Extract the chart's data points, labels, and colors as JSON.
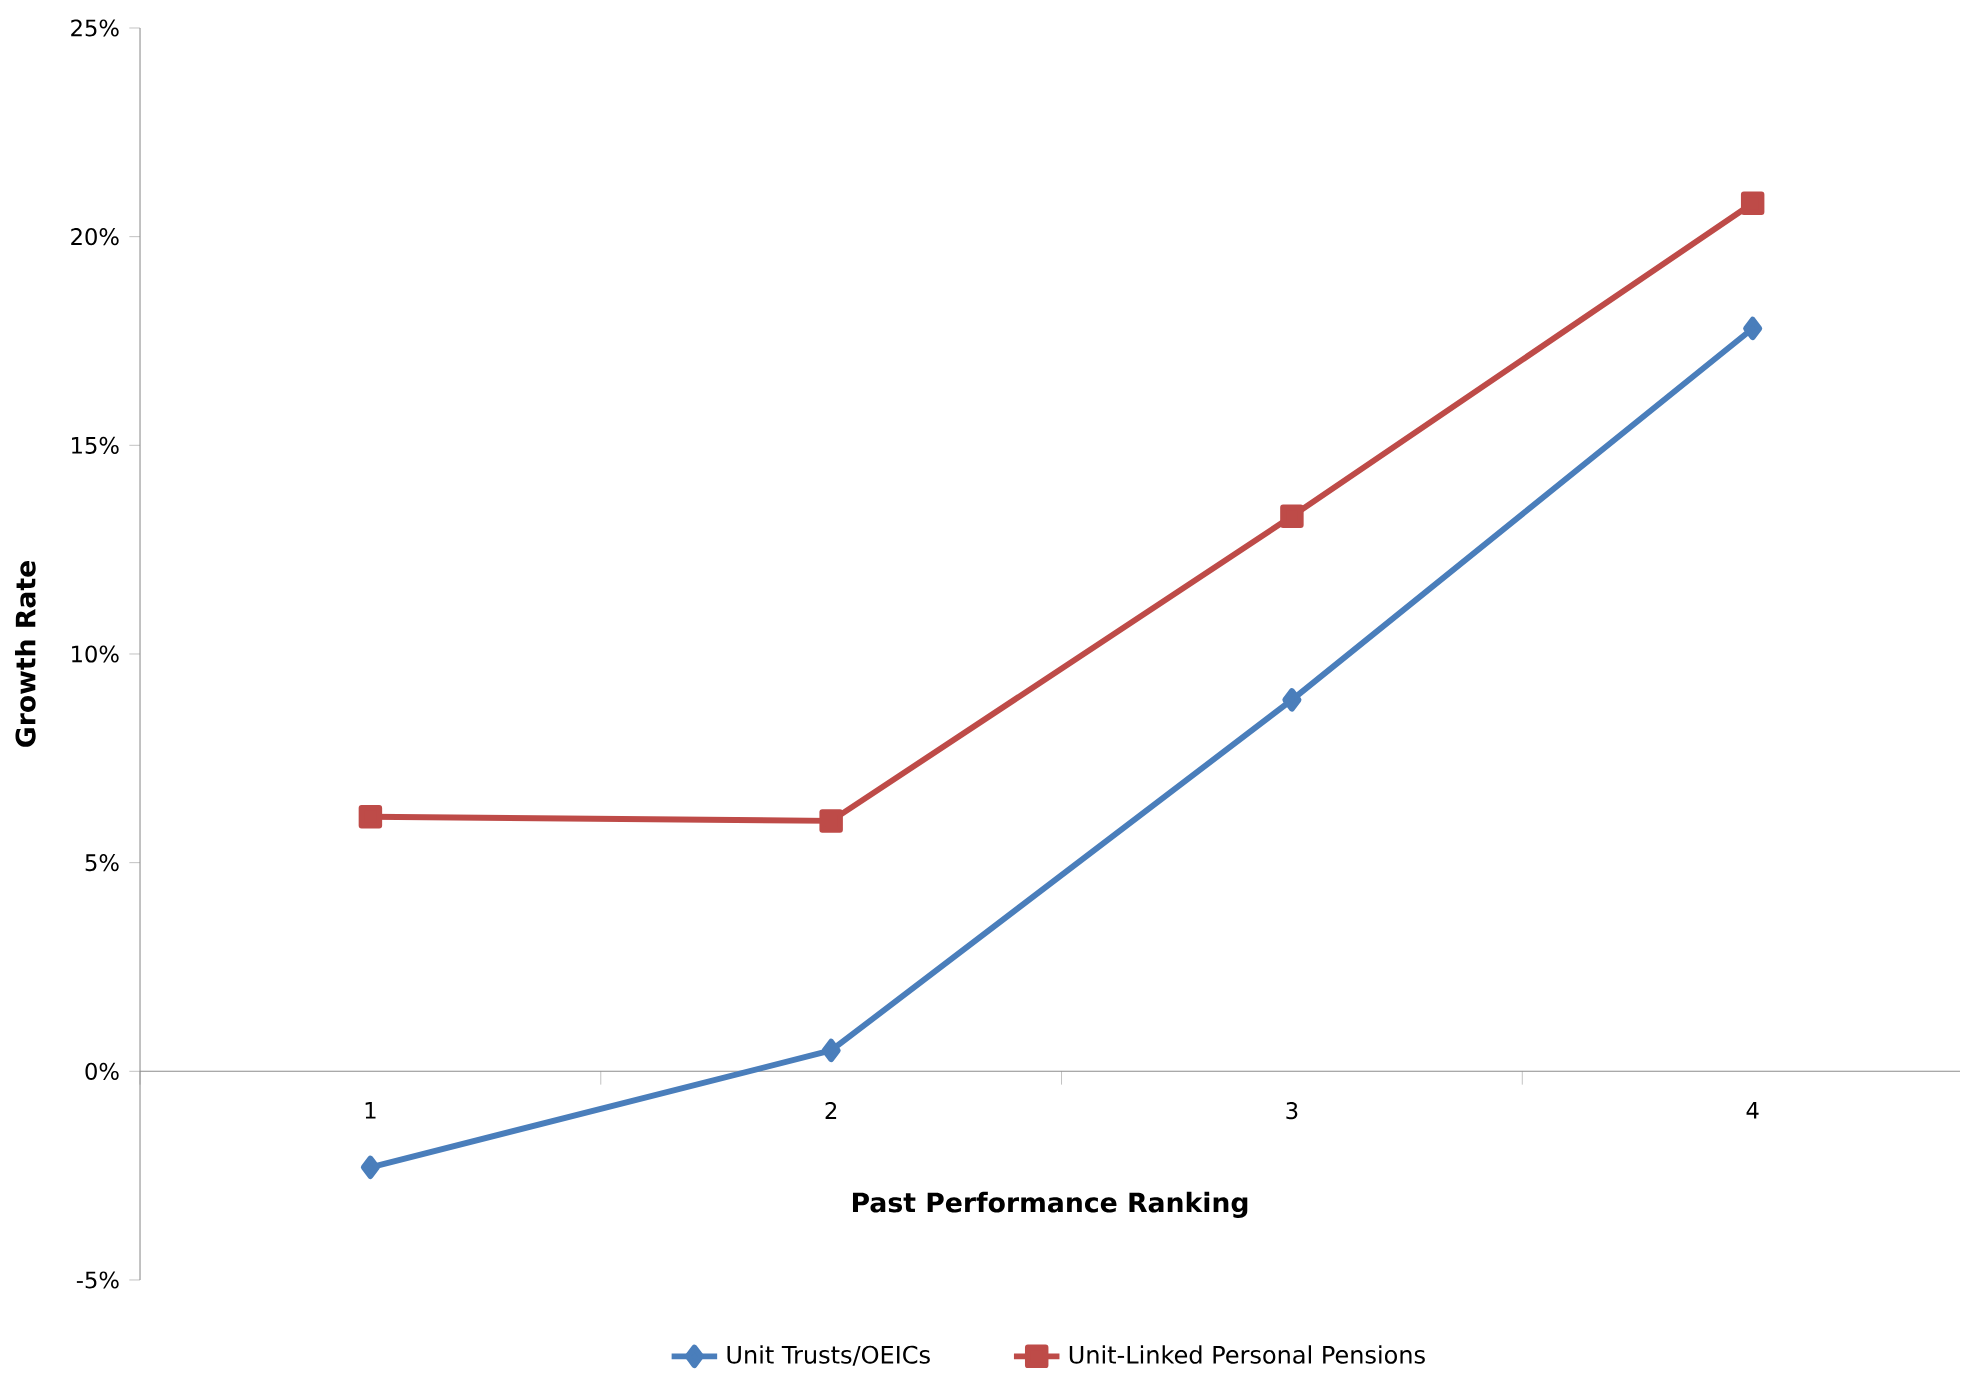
{
  "chart_data": {
    "type": "line",
    "xlabel": "Past Performance Ranking",
    "ylabel": "Growth Rate",
    "categories": [
      "1",
      "2",
      "3",
      "4"
    ],
    "series": [
      {
        "name": "Unit Trusts/OEICs",
        "color": "#4a7ebb",
        "marker": "diamond",
        "values": [
          -2.3,
          0.5,
          8.9,
          17.8
        ]
      },
      {
        "name": "Unit-Linked Personal Pensions",
        "color": "#be4b48",
        "marker": "square",
        "values": [
          6.1,
          6.0,
          13.3,
          20.8
        ]
      }
    ],
    "ylim": [
      -5,
      25
    ],
    "yticks": [
      {
        "value": -5,
        "label": "-5%"
      },
      {
        "value": 0,
        "label": "0%"
      },
      {
        "value": 5,
        "label": "5%"
      },
      {
        "value": 10,
        "label": "10%"
      },
      {
        "value": 15,
        "label": "15%"
      },
      {
        "value": 20,
        "label": "20%"
      },
      {
        "value": 25,
        "label": "25%"
      }
    ],
    "grid": false,
    "legend": "bottom",
    "line_style": "solid"
  }
}
